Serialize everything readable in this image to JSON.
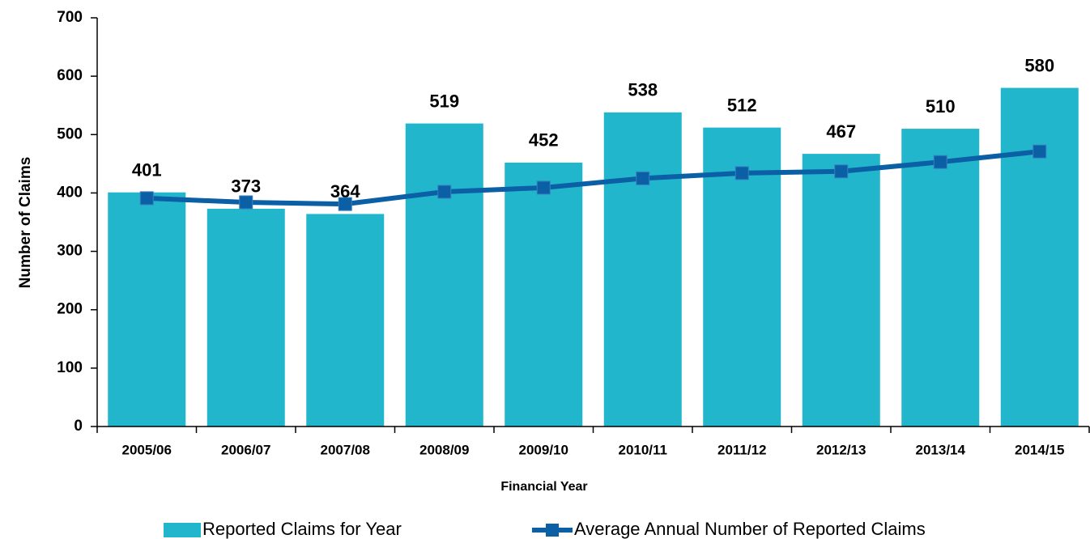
{
  "chart_data": {
    "type": "bar",
    "y_label": "Number of Claims",
    "x_label": "Financial Year",
    "categories": [
      "2005/06",
      "2006/07",
      "2007/08",
      "2008/09",
      "2009/10",
      "2010/11",
      "2011/12",
      "2012/13",
      "2013/14",
      "2014/15"
    ],
    "series": [
      {
        "name": "Reported Claims for Year",
        "type": "bar",
        "color": "#21b6cc",
        "values": [
          401,
          373,
          364,
          519,
          452,
          538,
          512,
          467,
          510,
          580
        ],
        "data_labels": true
      },
      {
        "name": "Average Annual Number of Reported Claims",
        "type": "line",
        "color": "#0b5fa5",
        "values": [
          391,
          384,
          381,
          402,
          409,
          425,
          434,
          437,
          453,
          471
        ]
      }
    ],
    "ylim": [
      0,
      700
    ],
    "yticks": [
      0,
      100,
      200,
      300,
      400,
      500,
      600,
      700
    ],
    "legend": "bottom"
  }
}
